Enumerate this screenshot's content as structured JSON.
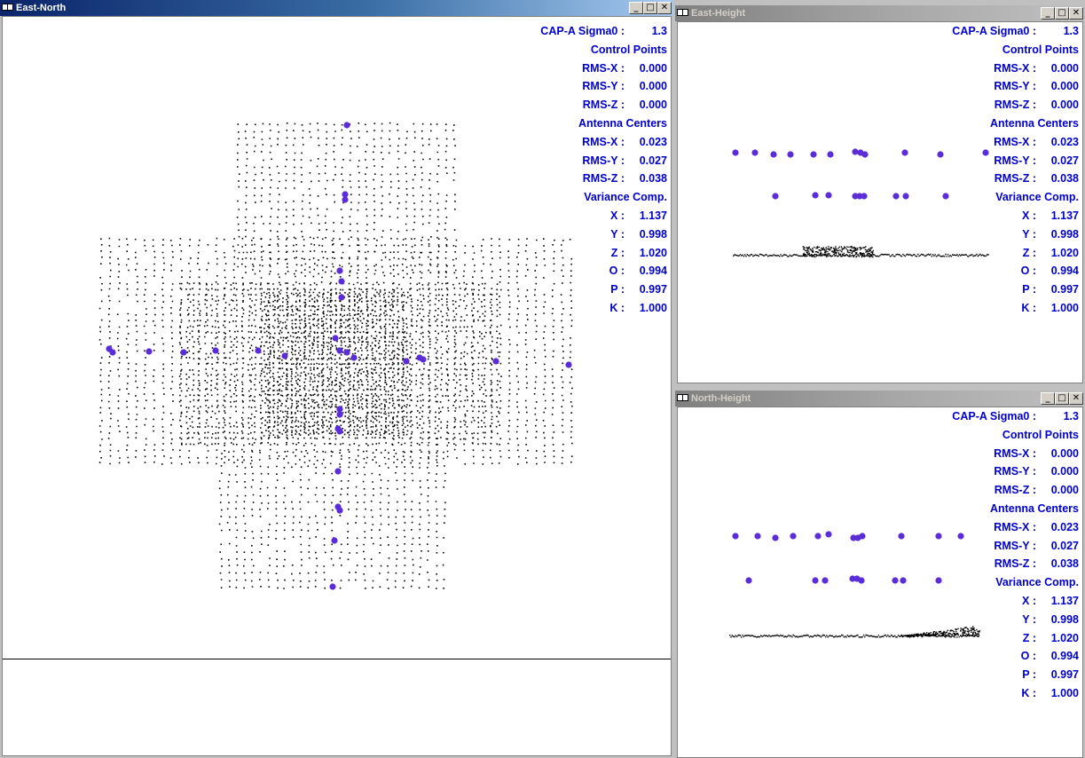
{
  "windows": {
    "east_north": {
      "title": "East-North"
    },
    "east_height": {
      "title": "East-Height"
    },
    "north_height": {
      "title": "North-Height"
    }
  },
  "stats": {
    "sigma_label": "CAP-A Sigma0 :",
    "sigma_value": "1.3",
    "control_points": "Control Points",
    "cp_rms_x_label": "RMS-X :",
    "cp_rms_x": "0.000",
    "cp_rms_y_label": "RMS-Y :",
    "cp_rms_y": "0.000",
    "cp_rms_z_label": "RMS-Z :",
    "cp_rms_z": "0.000",
    "antenna_centers": "Antenna Centers",
    "ac_rms_x_label": "RMS-X :",
    "ac_rms_x": "0.023",
    "ac_rms_y_label": "RMS-Y :",
    "ac_rms_y": "0.027",
    "ac_rms_z_label": "RMS-Z :",
    "ac_rms_z": "0.038",
    "variance_comp": "Variance Comp.",
    "x_label": "X :",
    "x_value": "1.137",
    "y_label": "Y :",
    "y_value": "0.998",
    "z_label": "Z :",
    "z_value": "1.020",
    "o_label": "O :",
    "o_value": "0.994",
    "p_label": "P :",
    "p_value": "0.997",
    "k_label": "K :",
    "k_value": "1.000"
  },
  "colors": {
    "tie_points": "#000000",
    "antenna_centers": "#5b2dd6",
    "stats_text": "#0000cc"
  },
  "icons": {
    "window_icon": "application-icon",
    "minimize": "minimize-icon",
    "maximize": "maximize-icon",
    "close": "close-icon"
  }
}
